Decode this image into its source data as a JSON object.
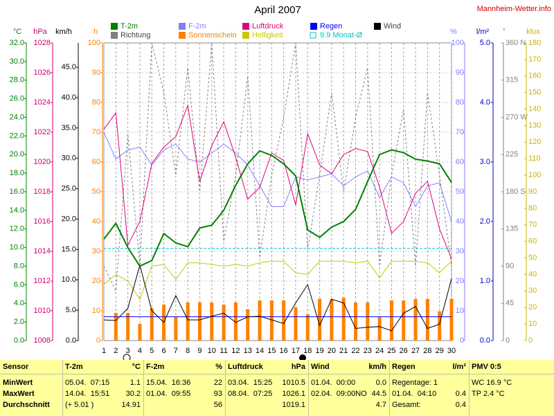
{
  "chart_data": {
    "type": "multi-axis",
    "title": "April 2007",
    "source": "Mannheim-Wetter.info",
    "x": [
      1,
      2,
      3,
      4,
      5,
      6,
      7,
      8,
      9,
      10,
      11,
      12,
      13,
      14,
      15,
      16,
      17,
      18,
      19,
      20,
      21,
      22,
      23,
      24,
      25,
      26,
      27,
      28,
      29,
      30
    ],
    "xlim": [
      1,
      30
    ],
    "xticks": [
      1,
      2,
      3,
      4,
      5,
      6,
      7,
      8,
      9,
      10,
      11,
      12,
      13,
      14,
      15,
      16,
      17,
      18,
      19,
      20,
      21,
      22,
      23,
      24,
      25,
      26,
      27,
      28,
      29,
      30
    ],
    "grid": true,
    "axes": [
      {
        "label": "°C",
        "color": "#008000",
        "ylim": [
          0,
          32
        ],
        "yticks": [
          {
            "value": 0,
            "label": "0.0"
          },
          {
            "value": 2,
            "label": "2.0"
          },
          {
            "value": 4,
            "label": "4.0"
          },
          {
            "value": 6,
            "label": "6.0"
          },
          {
            "value": 8,
            "label": "8.0"
          },
          {
            "value": 10,
            "label": "10.0"
          },
          {
            "value": 12,
            "label": "12.0"
          },
          {
            "value": 14,
            "label": "14.0"
          },
          {
            "value": 16,
            "label": "16.0"
          },
          {
            "value": 18,
            "label": "18.0"
          },
          {
            "value": 20,
            "label": "20.0"
          },
          {
            "value": 22,
            "label": "22.0"
          },
          {
            "value": 24,
            "label": "24.0"
          },
          {
            "value": 26,
            "label": "26.0"
          },
          {
            "value": 28,
            "label": "28.0"
          },
          {
            "value": 30,
            "label": "30.0"
          },
          {
            "value": 32,
            "label": "32.0"
          }
        ]
      },
      {
        "label": "hPa",
        "color": "#d0006a",
        "ylim": [
          1008,
          1028
        ],
        "yticks": [
          1008,
          1010,
          1012,
          1014,
          1016,
          1018,
          1020,
          1022,
          1024,
          1026,
          1028
        ]
      },
      {
        "label": "km/h",
        "color": "#000000",
        "ylim": [
          0,
          49
        ],
        "yticks": [
          {
            "value": 0,
            "label": "0.0"
          },
          {
            "value": 5,
            "label": "5.0"
          },
          {
            "value": 10,
            "label": "10.0"
          },
          {
            "value": 15,
            "label": "15.0"
          },
          {
            "value": 20,
            "label": "20.0"
          },
          {
            "value": 25,
            "label": "25.0"
          },
          {
            "value": 30,
            "label": "30.0"
          },
          {
            "value": 35,
            "label": "35.0"
          },
          {
            "value": 40,
            "label": "40.0"
          },
          {
            "value": 45,
            "label": "45.0"
          }
        ]
      },
      {
        "label": "h",
        "color": "#ff8000",
        "ylim": [
          0,
          100
        ],
        "yticks": [
          0,
          10,
          20,
          30,
          40,
          50,
          60,
          70,
          80,
          90,
          100
        ]
      },
      {
        "label": "%",
        "color": "#8080ff",
        "ylim": [
          0,
          100
        ],
        "yticks": [
          0,
          10,
          20,
          30,
          40,
          50,
          60,
          70,
          80,
          90,
          100
        ]
      },
      {
        "label": "l/m²",
        "color": "#0000c0",
        "ylim": [
          0,
          5
        ],
        "yticks": [
          {
            "value": 0,
            "label": "0.0"
          },
          {
            "value": 1,
            "label": "1.0"
          },
          {
            "value": 2,
            "label": "2.0"
          },
          {
            "value": 3,
            "label": "3.0"
          },
          {
            "value": 4,
            "label": "4.0"
          },
          {
            "value": 5,
            "label": "5.0"
          }
        ]
      },
      {
        "label": "°",
        "color": "#808080",
        "ylim": [
          0,
          360
        ],
        "yticks": [
          0,
          45,
          90,
          135,
          {
            "value": 180,
            "label": "180 S"
          },
          225,
          {
            "value": 270,
            "label": "270 W"
          },
          315,
          {
            "value": 360,
            "label": "360 N"
          }
        ]
      },
      {
        "label": "klux",
        "color": "#c8b400",
        "ylim": [
          0,
          180
        ],
        "yticks": [
          0,
          10,
          20,
          30,
          40,
          50,
          60,
          70,
          80,
          90,
          100,
          110,
          120,
          130,
          140,
          150,
          160,
          170,
          180
        ]
      }
    ],
    "series": [
      {
        "name": "T-2m",
        "color": "#008000",
        "axis": "°C",
        "kind": "line",
        "width": 2,
        "values": [
          10.9,
          12.6,
          10.0,
          8.0,
          8.6,
          11.5,
          10.5,
          10.1,
          12.1,
          12.4,
          14.0,
          16.7,
          19.0,
          20.4,
          19.9,
          19.0,
          17.7,
          11.9,
          11.1,
          12.2,
          12.8,
          14.1,
          17.1,
          20.0,
          20.5,
          20.2,
          19.5,
          19.3,
          19.0,
          17.0
        ]
      },
      {
        "name": "F-2m",
        "color": "#8080ff",
        "axis": "%",
        "kind": "line",
        "width": 1,
        "values": [
          70,
          61,
          64,
          65,
          59,
          64,
          66,
          61,
          60,
          63,
          66,
          63,
          59,
          52,
          45,
          45,
          55,
          54,
          55,
          56,
          52,
          55,
          57,
          48,
          55,
          53,
          45,
          52,
          53,
          40
        ]
      },
      {
        "name": "Luftdruck",
        "color": "#e0007a",
        "axis": "hPa",
        "kind": "line",
        "width": 1,
        "values": [
          1022.2,
          1023.3,
          1014.4,
          1016.0,
          1019.9,
          1021.0,
          1021.7,
          1023.8,
          1018.7,
          1021.1,
          1022.7,
          1020.3,
          1017.5,
          1018.3,
          1020.6,
          1020.1,
          1017.1,
          1021.9,
          1019.8,
          1019.2,
          1020.5,
          1020.9,
          1020.7,
          1018.3,
          1015.2,
          1016.0,
          1017.9,
          1018.7,
          1015.5,
          1013.5
        ]
      },
      {
        "name": "Regen",
        "color": "#0000ff",
        "axis": "l/m²",
        "kind": "cumulative",
        "width": 1,
        "values": [
          0.4,
          0,
          0,
          0,
          0,
          0,
          0,
          0,
          0,
          0,
          0,
          0,
          0,
          0,
          0,
          0,
          0,
          0,
          0,
          0,
          0,
          0,
          0,
          0,
          0,
          0,
          0,
          0,
          0,
          0
        ]
      },
      {
        "name": "Wind",
        "color": "#000000",
        "axis": "km/h",
        "kind": "line",
        "width": 1,
        "values": [
          3.4,
          3.3,
          5.3,
          12.4,
          4.9,
          3.0,
          7.4,
          3.4,
          3.4,
          4.0,
          4.5,
          3.0,
          3.9,
          4.0,
          3.4,
          2.8,
          6.2,
          9.2,
          2.5,
          6.8,
          6.2,
          2.0,
          2.2,
          2.3,
          1.6,
          4.5,
          5.6,
          2.0,
          2.7,
          10.2
        ]
      },
      {
        "name": "Richtung",
        "color": "#808080",
        "axis": "°",
        "kind": "dash",
        "width": 1,
        "values": [
          90,
          60,
          250,
          90,
          360,
          300,
          200,
          330,
          180,
          360,
          120,
          200,
          320,
          100,
          200,
          270,
          360,
          110,
          200,
          300,
          180,
          270,
          330,
          90,
          200,
          280,
          90,
          300,
          200,
          90
        ]
      },
      {
        "name": "Sonnenschein",
        "color": "#ff8000",
        "axis": "h",
        "kind": "bar",
        "values": [
          null,
          9.3,
          9.3,
          5.6,
          10.9,
          12.1,
          7.9,
          12.8,
          12.8,
          12.8,
          12.1,
          12.8,
          10.5,
          13.5,
          13.5,
          13.5,
          11.2,
          8.8,
          14.0,
          14.0,
          14.4,
          12.8,
          12.8,
          7.9,
          13.5,
          13.5,
          14.0,
          14.0,
          9.8,
          14.0
        ]
      },
      {
        "name": "Helligkeit",
        "color": "#c8c800",
        "axis": "klux",
        "kind": "line",
        "width": 1,
        "values": [
          34,
          40,
          36,
          25,
          45,
          46,
          37,
          47,
          47,
          46,
          45,
          46,
          45,
          47,
          48,
          48,
          41,
          40,
          48,
          48,
          48,
          47,
          48,
          38,
          48,
          48,
          48,
          47,
          41,
          48
        ]
      },
      {
        "name": "9.9 Monat-Ø",
        "color": "#00c0c0",
        "axis": "°C",
        "kind": "level",
        "value": 9.9
      }
    ]
  },
  "table": {
    "header": [
      [
        "Sensor"
      ],
      [
        "T-2m",
        "°C"
      ],
      [
        "F-2m",
        "%"
      ],
      [
        "Luftdruck",
        "hPa"
      ],
      [
        "Wind",
        "km/h"
      ],
      [
        "Regen",
        "l/m²"
      ],
      [
        "PMV 0:5"
      ]
    ],
    "rows": [
      [
        [
          "MinWert"
        ],
        [
          "05.04.  07:15",
          "1.1"
        ],
        [
          "15.04.  16:36",
          "22"
        ],
        [
          "03.04.  15:25",
          "1010.5"
        ],
        [
          "01.04.  00:00",
          "0.0"
        ],
        [
          "Regentage: 1"
        ],
        [
          "WC 16.9 °C"
        ]
      ],
      [
        [
          "MaxWert"
        ],
        [
          "14.04.  15:51",
          "30.2"
        ],
        [
          "01.04.  09:55",
          "93"
        ],
        [
          "08.04.  07:25",
          "1026.1"
        ],
        [
          "02.04.  09:00NO",
          "44.5"
        ],
        [
          "01.04.  04:10",
          "0.4"
        ],
        [
          "TP 2.4 °C"
        ]
      ],
      [
        [
          "Durchschnitt"
        ],
        [
          "(+ 5.01 )",
          "14.91"
        ],
        [
          "56"
        ],
        [
          "1019.1"
        ],
        [
          "4.7"
        ],
        [
          "Gesamt:",
          "0.4"
        ]
      ]
    ]
  }
}
